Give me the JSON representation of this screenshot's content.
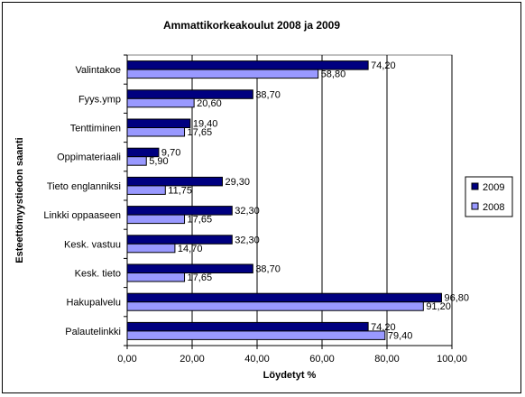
{
  "chart_data": {
    "type": "bar",
    "orientation": "horizontal",
    "title": "Ammattikorkeakoulut 2008 ja 2009",
    "xlabel": "Löydetyt %",
    "ylabel": "Esteettömyystiedon saanti",
    "xlim": [
      0,
      100
    ],
    "xticks": [
      "0,00",
      "20,00",
      "40,00",
      "60,00",
      "80,00",
      "100,00"
    ],
    "grid": true,
    "legend_position": "right",
    "categories": [
      "Valintakoe",
      "Fyys.ymp",
      "Tenttiminen",
      "Oppimateriaali",
      "Tieto englanniksi",
      "Linkki oppaaseen",
      "Kesk. vastuu",
      "Kesk. tieto",
      "Hakupalvelu",
      "Palautelinkki"
    ],
    "series": [
      {
        "name": "2009",
        "color": "#000080",
        "values": [
          74.2,
          38.7,
          19.4,
          9.7,
          29.3,
          32.3,
          32.3,
          38.7,
          96.8,
          74.2
        ],
        "labels": [
          "74,20",
          "38,70",
          "19,40",
          "9,70",
          "29,30",
          "32,30",
          "32,30",
          "38,70",
          "96,80",
          "74,20"
        ]
      },
      {
        "name": "2008",
        "color": "#9999FF",
        "values": [
          58.8,
          20.6,
          17.65,
          5.9,
          11.75,
          17.65,
          14.7,
          17.65,
          91.2,
          79.4
        ],
        "labels": [
          "58,80",
          "20,60",
          "17,65",
          "5,90",
          "11,75",
          "17,65",
          "14,70",
          "17,65",
          "91,20",
          "79,40"
        ]
      }
    ]
  }
}
